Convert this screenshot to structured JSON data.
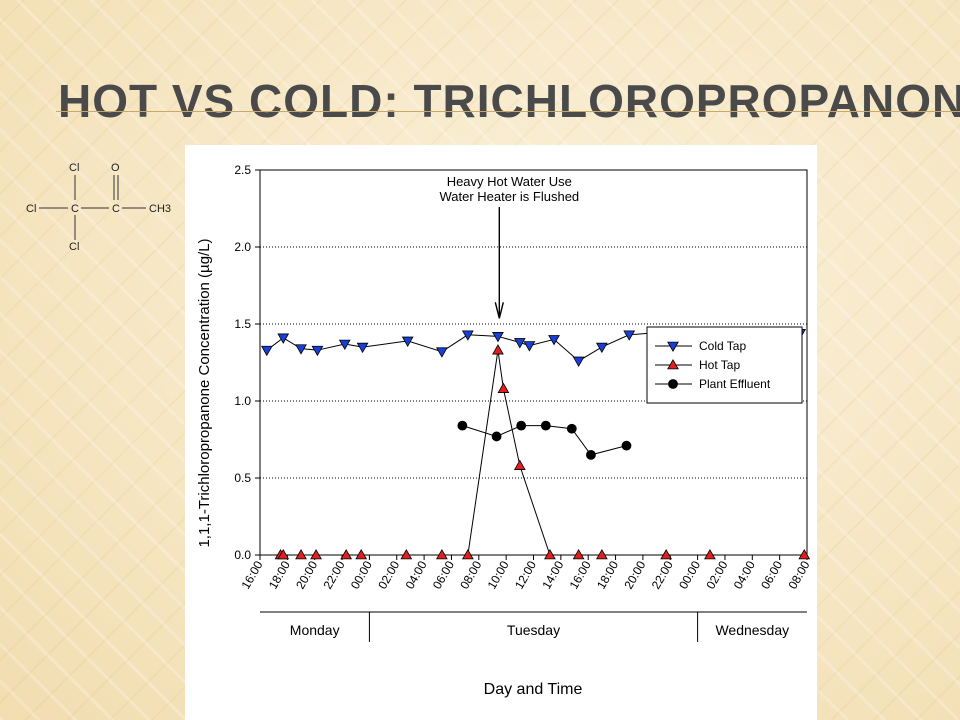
{
  "slide": {
    "title": "HOT VS COLD: TRICHLOROPROPANONE",
    "accent_color": "#c9a96a"
  },
  "molecule": {
    "atoms": [
      "Cl",
      "C",
      "C",
      "CH3",
      "Cl",
      "Cl",
      "O"
    ]
  },
  "chart_data": {
    "type": "line",
    "title": "",
    "xlabel": "Day and Time",
    "ylabel": "1,1,1-Trichloropropanone Concentration (µg/L)",
    "ylim": [
      0,
      2.5
    ],
    "yticks": [
      "0.0",
      "0.5",
      "1.0",
      "1.5",
      "2.0",
      "2.5"
    ],
    "xlim": [
      0,
      40
    ],
    "xtick_positions": [
      0,
      2,
      4,
      6,
      8,
      10,
      12,
      14,
      16,
      18,
      20,
      22,
      24,
      26,
      28,
      30,
      32,
      34,
      36,
      38,
      40
    ],
    "xticks": [
      "16:00",
      "18:00",
      "20:00",
      "22:00",
      "00:00",
      "02:00",
      "04:00",
      "06:00",
      "08:00",
      "10:00",
      "12:00",
      "14:00",
      "16:00",
      "18:00",
      "20:00",
      "22:00",
      "00:00",
      "02:00",
      "04:00",
      "06:00",
      "08:00"
    ],
    "grid": "horizontal dotted",
    "legend_position": "right",
    "days": [
      {
        "label": "Monday",
        "start": 0,
        "end": 8
      },
      {
        "label": "Tuesday",
        "start": 8,
        "end": 32
      },
      {
        "label": "Wednesday",
        "start": 32,
        "end": 40
      }
    ],
    "annotation": {
      "lines": [
        "Heavy Hot Water Use",
        "Water Heater is Flushed"
      ],
      "x": 17.5,
      "y": 1.55
    },
    "series": [
      {
        "name": "Cold Tap",
        "marker": "triangle-down",
        "color": "#1a3fd6",
        "x": [
          0.5,
          1.7,
          3.0,
          4.2,
          6.2,
          7.5,
          10.8,
          13.3,
          15.2,
          17.4,
          19.0,
          19.7,
          21.5,
          23.3,
          25.0,
          27.0,
          29.8,
          31.7,
          33.5,
          36.0,
          39.5
        ],
        "y": [
          1.33,
          1.41,
          1.34,
          1.33,
          1.37,
          1.35,
          1.39,
          1.32,
          1.43,
          1.42,
          1.38,
          1.36,
          1.4,
          1.26,
          1.35,
          1.43,
          1.45,
          1.44,
          1.43,
          1.45,
          1.44
        ]
      },
      {
        "name": "Hot Tap",
        "marker": "triangle-up",
        "color": "#e02020",
        "x": [
          1.5,
          1.7,
          3.0,
          4.1,
          6.3,
          7.4,
          10.7,
          13.3,
          15.2,
          17.4,
          17.8,
          19.0,
          21.2,
          23.3,
          25.0,
          29.7,
          32.9,
          39.8
        ],
        "y": [
          0.0,
          0.0,
          0.0,
          0.0,
          0.0,
          0.0,
          0.0,
          0.0,
          0.0,
          1.33,
          1.08,
          0.58,
          0.0,
          0.0,
          0.0,
          0.0,
          0.0,
          0.0
        ]
      },
      {
        "name": "Plant Effluent",
        "marker": "circle",
        "color": "#000000",
        "x": [
          14.8,
          17.3,
          19.1,
          20.9,
          22.8,
          24.2,
          26.8
        ],
        "y": [
          0.84,
          0.77,
          0.84,
          0.84,
          0.82,
          0.65,
          0.71
        ]
      }
    ]
  }
}
